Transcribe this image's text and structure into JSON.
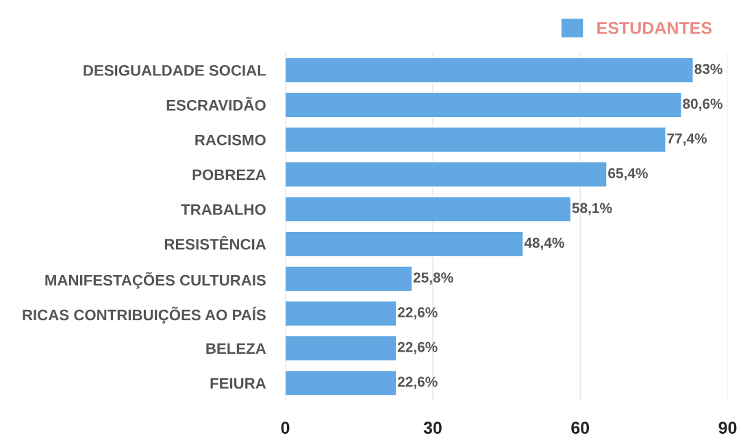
{
  "chart_data": {
    "type": "bar",
    "orientation": "horizontal",
    "categories": [
      "DESIGUALDADE SOCIAL",
      "ESCRAVIDÃO",
      "RACISMO",
      "POBREZA",
      "TRABALHO",
      "RESISTÊNCIA",
      "MANIFESTAÇÕES CULTURAIS",
      "RICAS CONTRIBUIÇÕES AO PAÍS",
      "BELEZA",
      "FEIURA"
    ],
    "series": [
      {
        "name": "ESTUDANTES",
        "color": "#62a8e3",
        "values": [
          83,
          80.6,
          77.4,
          65.4,
          58.1,
          48.4,
          25.8,
          22.6,
          22.6,
          22.6
        ],
        "value_labels": [
          "83%",
          "80,6%",
          "77,4%",
          "65,4%",
          "58,1%",
          "48,4%",
          "25,8%",
          "22,6%",
          "22,6%",
          "22,6%"
        ]
      }
    ],
    "xlim": [
      0,
      90
    ],
    "xticks": [
      0,
      30,
      60,
      90
    ],
    "grid": "x",
    "legend": "top right"
  }
}
